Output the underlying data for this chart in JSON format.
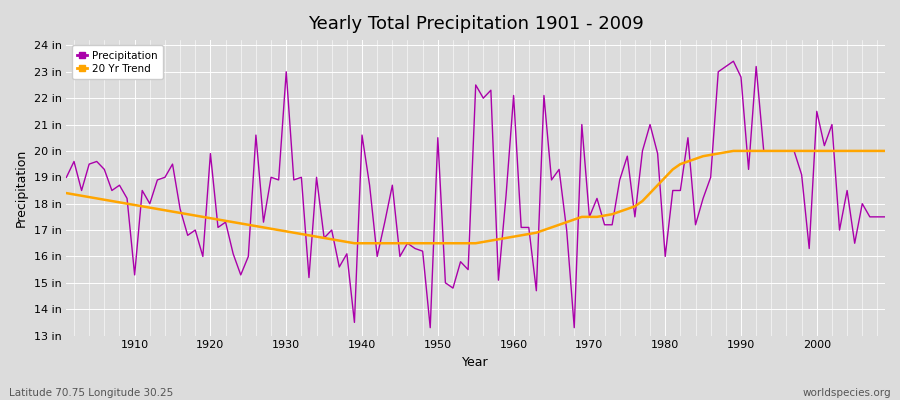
{
  "title": "Yearly Total Precipitation 1901 - 2009",
  "xlabel": "Year",
  "ylabel": "Precipitation",
  "bottom_left_label": "Latitude 70.75 Longitude 30.25",
  "bottom_right_label": "worldspecies.org",
  "background_color": "#dcdcdc",
  "plot_background_color": "#dcdcdc",
  "precipitation_color": "#aa00aa",
  "trend_color": "#FFA500",
  "ylim": [
    13,
    24.2
  ],
  "yticks": [
    13,
    14,
    15,
    16,
    17,
    18,
    19,
    20,
    21,
    22,
    23,
    24
  ],
  "ytick_labels": [
    "13 in",
    "14 in",
    "15 in",
    "16 in",
    "17 in",
    "18 in",
    "19 in",
    "20 in",
    "21 in",
    "22 in",
    "23 in",
    "24 in"
  ],
  "years": [
    1901,
    1902,
    1903,
    1904,
    1905,
    1906,
    1907,
    1908,
    1909,
    1910,
    1911,
    1912,
    1913,
    1914,
    1915,
    1916,
    1917,
    1918,
    1919,
    1920,
    1921,
    1922,
    1923,
    1924,
    1925,
    1926,
    1927,
    1928,
    1929,
    1930,
    1931,
    1932,
    1933,
    1934,
    1935,
    1936,
    1937,
    1938,
    1939,
    1940,
    1941,
    1942,
    1943,
    1944,
    1945,
    1946,
    1947,
    1948,
    1949,
    1950,
    1951,
    1952,
    1953,
    1954,
    1955,
    1956,
    1957,
    1958,
    1959,
    1960,
    1961,
    1962,
    1963,
    1964,
    1965,
    1966,
    1967,
    1968,
    1969,
    1970,
    1971,
    1972,
    1973,
    1974,
    1975,
    1976,
    1977,
    1978,
    1979,
    1980,
    1981,
    1982,
    1983,
    1984,
    1985,
    1986,
    1987,
    1988,
    1989,
    1990,
    1991,
    1992,
    1993,
    1994,
    1995,
    1996,
    1997,
    1998,
    1999,
    2000,
    2001,
    2002,
    2003,
    2004,
    2005,
    2006,
    2007,
    2008,
    2009
  ],
  "precipitation": [
    19.0,
    19.6,
    18.5,
    19.5,
    19.6,
    19.3,
    18.5,
    18.7,
    18.2,
    15.3,
    18.5,
    18.0,
    18.9,
    19.0,
    19.5,
    17.8,
    16.8,
    17.0,
    16.0,
    19.9,
    17.1,
    17.3,
    16.1,
    15.3,
    16.0,
    20.6,
    17.3,
    19.0,
    18.9,
    23.0,
    18.9,
    19.0,
    15.2,
    19.0,
    16.7,
    17.0,
    15.6,
    16.1,
    13.5,
    20.6,
    18.7,
    16.0,
    17.3,
    18.7,
    16.0,
    16.5,
    16.3,
    16.2,
    13.3,
    20.5,
    15.0,
    14.8,
    15.8,
    15.5,
    22.5,
    22.0,
    22.3,
    15.1,
    18.3,
    22.1,
    17.1,
    17.1,
    14.7,
    22.1,
    18.9,
    19.3,
    17.0,
    13.3,
    21.0,
    17.5,
    18.2,
    17.2,
    17.2,
    18.9,
    19.8,
    17.5,
    20.0,
    21.0,
    19.9,
    16.0,
    18.5,
    18.5,
    20.5,
    17.2,
    18.2,
    19.0,
    23.0,
    23.2,
    23.4,
    22.8,
    19.3,
    23.2,
    20.0,
    20.0,
    20.0,
    20.0,
    20.0,
    19.1,
    16.3,
    21.5,
    20.2,
    21.0,
    17.0,
    18.5,
    16.5,
    18.0,
    17.5,
    17.5,
    17.5
  ],
  "trend": [
    18.4,
    18.35,
    18.3,
    18.25,
    18.2,
    18.15,
    18.1,
    18.05,
    18.0,
    17.95,
    17.9,
    17.85,
    17.8,
    17.75,
    17.7,
    17.65,
    17.6,
    17.55,
    17.5,
    17.45,
    17.4,
    17.35,
    17.3,
    17.25,
    17.2,
    17.15,
    17.1,
    17.05,
    17.0,
    16.95,
    16.9,
    16.85,
    16.8,
    16.75,
    16.7,
    16.65,
    16.6,
    16.55,
    16.5,
    16.5,
    16.5,
    16.5,
    16.5,
    16.5,
    16.5,
    16.5,
    16.5,
    16.5,
    16.5,
    16.5,
    16.5,
    16.5,
    16.5,
    16.5,
    16.5,
    16.55,
    16.6,
    16.65,
    16.7,
    16.75,
    16.8,
    16.85,
    16.9,
    17.0,
    17.1,
    17.2,
    17.3,
    17.4,
    17.5,
    17.5,
    17.5,
    17.55,
    17.6,
    17.7,
    17.8,
    17.9,
    18.1,
    18.4,
    18.7,
    19.0,
    19.3,
    19.5,
    19.6,
    19.7,
    19.8,
    19.85,
    19.9,
    19.95,
    20.0,
    20.0,
    20.0,
    20.0,
    20.0,
    20.0,
    20.0,
    20.0,
    20.0,
    20.0,
    20.0,
    20.0,
    20.0,
    20.0,
    20.0,
    20.0,
    20.0,
    20.0,
    20.0,
    20.0,
    20.0
  ]
}
